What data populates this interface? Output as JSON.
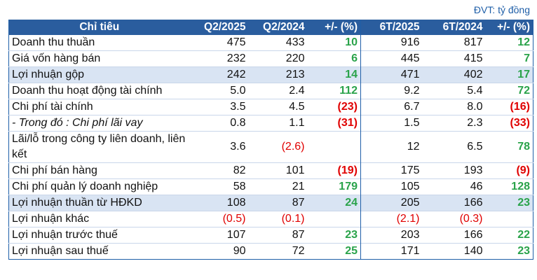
{
  "unit_note": "ĐVT: tỷ đồng",
  "headers": [
    "Chỉ tiêu",
    "Q2/2025",
    "Q2/2024",
    "+/- (%)",
    "6T/2025",
    "6T/2024",
    "+/- (%)"
  ],
  "rows": [
    {
      "label": "Doanh thu thuần",
      "q2_2025": "475",
      "q2_2024": "433",
      "q_pct": "10",
      "h1_2025": "916",
      "h1_2024": "817",
      "h_pct": "12"
    },
    {
      "label": "Giá vốn hàng bán",
      "q2_2025": "232",
      "q2_2024": "220",
      "q_pct": "6",
      "h1_2025": "445",
      "h1_2024": "415",
      "h_pct": "7"
    },
    {
      "label": "Lợi nhuận gộp",
      "q2_2025": "242",
      "q2_2024": "213",
      "q_pct": "14",
      "h1_2025": "471",
      "h1_2024": "402",
      "h_pct": "17"
    },
    {
      "label": "Doanh thu hoạt động tài chính",
      "q2_2025": "5.0",
      "q2_2024": "2.4",
      "q_pct": "112",
      "h1_2025": "9.2",
      "h1_2024": "5.4",
      "h_pct": "72"
    },
    {
      "label": "Chi phí tài chính",
      "q2_2025": "3.5",
      "q2_2024": "4.5",
      "q_pct": "(23)",
      "h1_2025": "6.7",
      "h1_2024": "8.0",
      "h_pct": "(16)"
    },
    {
      "label": "- Trong đó : Chi phí lãi vay",
      "q2_2025": "0.8",
      "q2_2024": "1.1",
      "q_pct": "(31)",
      "h1_2025": "1.5",
      "h1_2024": "2.3",
      "h_pct": "(33)"
    },
    {
      "label": "Lãi/lỗ trong công ty liên doanh, liên kết",
      "q2_2025": "3.6",
      "q2_2024": "(2.6)",
      "q_pct": "",
      "h1_2025": "12",
      "h1_2024": "6.5",
      "h_pct": "78"
    },
    {
      "label": "Chi phí bán hàng",
      "q2_2025": "82",
      "q2_2024": "101",
      "q_pct": "(19)",
      "h1_2025": "175",
      "h1_2024": "193",
      "h_pct": "(9)"
    },
    {
      "label": "Chi phí quản lý doanh nghiệp",
      "q2_2025": "58",
      "q2_2024": "21",
      "q_pct": "179",
      "h1_2025": "105",
      "h1_2024": "46",
      "h_pct": "128"
    },
    {
      "label": "Lợi nhuận thuần từ HĐKD",
      "q2_2025": "108",
      "q2_2024": "87",
      "q_pct": "24",
      "h1_2025": "205",
      "h1_2024": "166",
      "h_pct": "23"
    },
    {
      "label": "Lợi nhuận khác",
      "q2_2025": "(0.5)",
      "q2_2024": "(0.1)",
      "q_pct": "",
      "h1_2025": "(2.1)",
      "h1_2024": "(0.3)",
      "h_pct": ""
    },
    {
      "label": "Lợi nhuận trước thuế",
      "q2_2025": "107",
      "q2_2024": "87",
      "q_pct": "23",
      "h1_2025": "203",
      "h1_2024": "166",
      "h_pct": "22"
    },
    {
      "label": "Lợi nhuận sau thuế",
      "q2_2025": "90",
      "q2_2024": "72",
      "q_pct": "25",
      "h1_2025": "171",
      "h1_2024": "140",
      "h_pct": "23"
    }
  ],
  "colors": {
    "header_bg": "#2a5d9e",
    "highlight_bg": "#d9e4f3",
    "positive": "#2aa34a",
    "negative": "#e00000",
    "unit_text": "#1f5fa8"
  }
}
